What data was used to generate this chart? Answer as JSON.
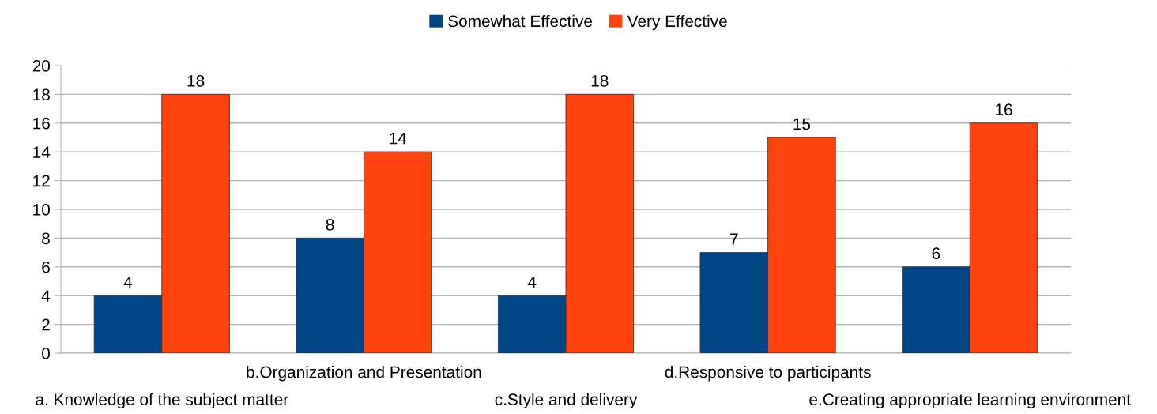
{
  "chart_data": {
    "type": "bar",
    "categories": [
      "a. Knowledge of the subject matter",
      "b.Organization and Presentation",
      "c.Style and delivery",
      "d.Responsive to participants",
      "e.Creating appropriate learning environment"
    ],
    "series": [
      {
        "name": "Somewhat Effective",
        "color": "#004586",
        "values": [
          4,
          8,
          4,
          7,
          6
        ]
      },
      {
        "name": "Very Effective",
        "color": "#ff420e",
        "values": [
          18,
          14,
          18,
          15,
          16
        ]
      }
    ],
    "ylim": [
      0,
      20
    ],
    "yticks": [
      0,
      2,
      4,
      6,
      8,
      10,
      12,
      14,
      16,
      18,
      20
    ],
    "grid": "y",
    "legend": "top",
    "data_labels": true
  }
}
